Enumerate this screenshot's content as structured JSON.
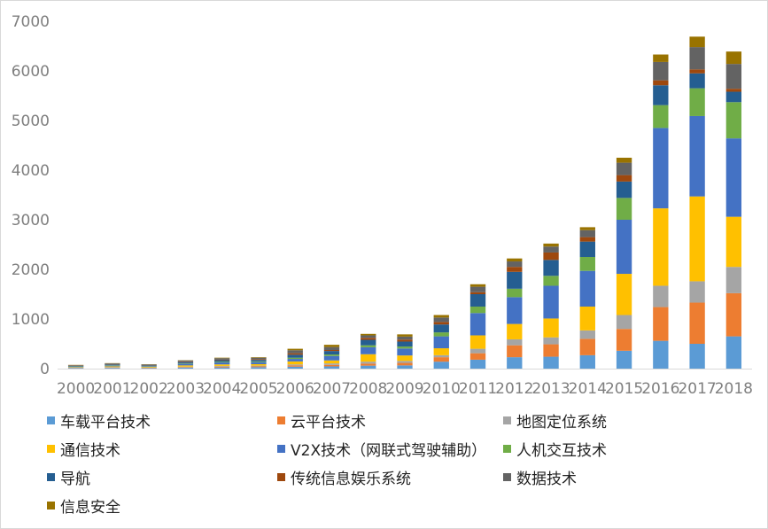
{
  "chart_data": {
    "type": "bar",
    "stacked": true,
    "categories": [
      "2000",
      "2001",
      "2002",
      "2003",
      "2004",
      "2005",
      "2006",
      "2007",
      "2008",
      "2009",
      "2010",
      "2011",
      "2012",
      "2013",
      "2014",
      "2015",
      "2016",
      "2017",
      "2018"
    ],
    "y_ticks": [
      "0",
      "1000",
      "2000",
      "3000",
      "4000",
      "5000",
      "6000",
      "7000"
    ],
    "ylim": [
      0,
      7000
    ],
    "grid": false,
    "legend_position": "bottom",
    "series": [
      {
        "name": "车载平台技术",
        "color": "#5b9bd5",
        "values": [
          10,
          15,
          12,
          20,
          25,
          30,
          40,
          45,
          60,
          65,
          140,
          180,
          230,
          240,
          270,
          360,
          560,
          500,
          650
        ]
      },
      {
        "name": "云平台技术",
        "color": "#ed7d31",
        "values": [
          5,
          8,
          6,
          10,
          15,
          15,
          25,
          30,
          40,
          50,
          90,
          130,
          240,
          250,
          330,
          440,
          680,
          830,
          870
        ]
      },
      {
        "name": "地图定位系统",
        "color": "#a5a5a5",
        "values": [
          5,
          8,
          6,
          10,
          15,
          15,
          20,
          30,
          40,
          40,
          40,
          90,
          120,
          140,
          170,
          280,
          430,
          430,
          530
        ]
      },
      {
        "name": "通信技术",
        "color": "#ffc000",
        "values": [
          10,
          15,
          12,
          25,
          30,
          30,
          60,
          60,
          150,
          110,
          140,
          270,
          310,
          380,
          480,
          830,
          1560,
          1710,
          1010
        ]
      },
      {
        "name": "V2X技术（网联式驾驶辅助）",
        "color": "#4472c4",
        "values": [
          10,
          15,
          12,
          30,
          40,
          40,
          50,
          90,
          140,
          140,
          240,
          450,
          540,
          660,
          720,
          1090,
          1620,
          1620,
          1580
        ]
      },
      {
        "name": "人机交互技术",
        "color": "#70ad47",
        "values": [
          5,
          8,
          6,
          10,
          15,
          15,
          25,
          30,
          40,
          40,
          80,
          130,
          170,
          200,
          280,
          440,
          460,
          560,
          730
        ]
      },
      {
        "name": "导航",
        "color": "#255e91",
        "values": [
          10,
          15,
          12,
          25,
          30,
          30,
          60,
          70,
          110,
          100,
          160,
          250,
          340,
          320,
          310,
          330,
          400,
          300,
          210
        ]
      },
      {
        "name": "传统信息娱乐系统",
        "color": "#9e480e",
        "values": [
          5,
          5,
          5,
          10,
          10,
          15,
          30,
          20,
          40,
          40,
          50,
          40,
          100,
          150,
          90,
          130,
          100,
          80,
          60
        ]
      },
      {
        "name": "数据技术",
        "color": "#636363",
        "values": [
          10,
          15,
          12,
          25,
          30,
          30,
          60,
          60,
          50,
          60,
          90,
          110,
          110,
          120,
          140,
          250,
          370,
          450,
          500
        ]
      },
      {
        "name": "信息安全",
        "color": "#997300",
        "values": [
          5,
          6,
          5,
          5,
          10,
          10,
          30,
          45,
          30,
          45,
          50,
          50,
          60,
          60,
          60,
          100,
          150,
          210,
          250
        ]
      }
    ]
  }
}
